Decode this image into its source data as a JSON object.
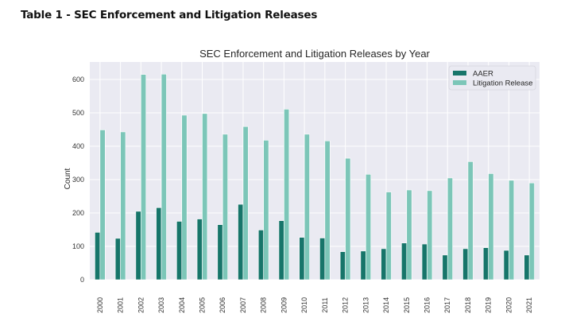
{
  "document": {
    "heading": "Table 1 - SEC Enforcement and Litigation Releases"
  },
  "colors": {
    "aaer": "#17756a",
    "litigation": "#7cc6b8",
    "plot_bg": "#eaeaf2",
    "grid": "#ffffff"
  },
  "chart_data": {
    "type": "bar",
    "title": "SEC Enforcement and Litigation Releases by Year",
    "xlabel": "",
    "ylabel": "Count",
    "ylim": [
      0,
      650
    ],
    "yticks": [
      0,
      100,
      200,
      300,
      400,
      500,
      600
    ],
    "grid": true,
    "legend_position": "top-right",
    "categories": [
      "2000",
      "2001",
      "2002",
      "2003",
      "2004",
      "2005",
      "2006",
      "2007",
      "2008",
      "2009",
      "2010",
      "2011",
      "2012",
      "2013",
      "2014",
      "2015",
      "2016",
      "2017",
      "2018",
      "2019",
      "2020",
      "2021"
    ],
    "series": [
      {
        "name": "AAER",
        "values": [
          142,
          124,
          205,
          216,
          175,
          182,
          165,
          226,
          149,
          177,
          127,
          125,
          84,
          86,
          93,
          110,
          107,
          74,
          93,
          96,
          88,
          74
        ]
      },
      {
        "name": "Litigation Release",
        "values": [
          449,
          443,
          615,
          616,
          493,
          498,
          436,
          459,
          418,
          511,
          436,
          416,
          364,
          316,
          263,
          269,
          267,
          305,
          354,
          318,
          298,
          290
        ]
      }
    ]
  }
}
